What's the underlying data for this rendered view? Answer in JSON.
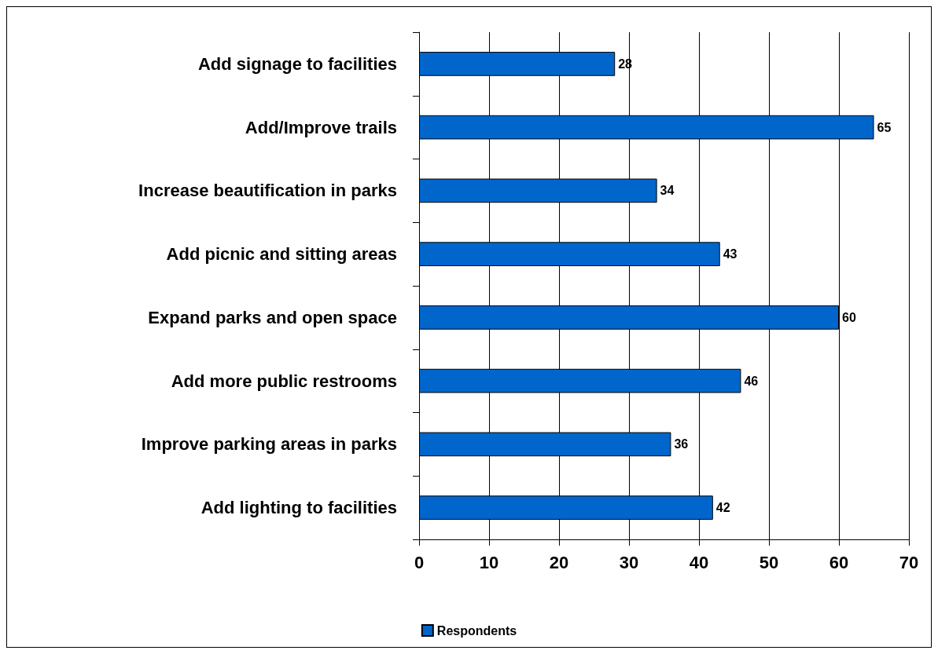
{
  "chart_data": {
    "type": "bar",
    "orientation": "horizontal",
    "categories": [
      "Add signage to facilities",
      "Add/Improve trails",
      "Increase beautification in parks",
      "Add picnic and sitting areas",
      "Expand parks and open space",
      "Add more public restrooms",
      "Improve parking areas in parks",
      "Add lighting to facilities"
    ],
    "series": [
      {
        "name": "Respondents",
        "color": "#0066cc",
        "values": [
          28,
          65,
          34,
          43,
          60,
          46,
          36,
          42
        ]
      }
    ],
    "xlim": [
      0,
      70
    ],
    "xticks": [
      0,
      10,
      20,
      30,
      40,
      50,
      60,
      70
    ],
    "grid": "x",
    "legend": "bottom",
    "data_labels": true
  }
}
